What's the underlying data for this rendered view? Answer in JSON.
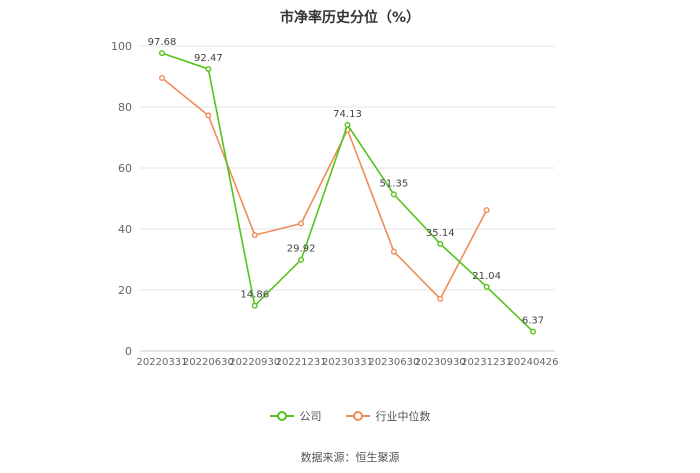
{
  "title": "市净率历史分位（%）",
  "source": "数据来源：恒生聚源",
  "chart_data": {
    "type": "line",
    "categories": [
      "20220331",
      "20220630",
      "20220930",
      "20221231",
      "20230331",
      "20230630",
      "20230930",
      "20231231",
      "20240426"
    ],
    "ylim": [
      0,
      100
    ],
    "yticks": [
      0,
      20,
      40,
      60,
      80,
      100
    ],
    "grid": true,
    "legend_position": "bottom",
    "series": [
      {
        "name": "公司",
        "color": "#52c41a",
        "values": [
          97.68,
          92.47,
          14.86,
          29.92,
          74.13,
          51.35,
          35.14,
          21.04,
          6.37
        ],
        "labels": [
          "97.68",
          "92.47",
          "14.86",
          "29.92",
          "74.13",
          "51.35",
          "35.14",
          "21.04",
          "6.37"
        ]
      },
      {
        "name": "行业中位数",
        "color": "#f08c5a",
        "values": [
          89.5,
          77.2,
          38.0,
          41.8,
          72.5,
          32.6,
          17.1,
          46.2,
          null
        ]
      }
    ]
  }
}
